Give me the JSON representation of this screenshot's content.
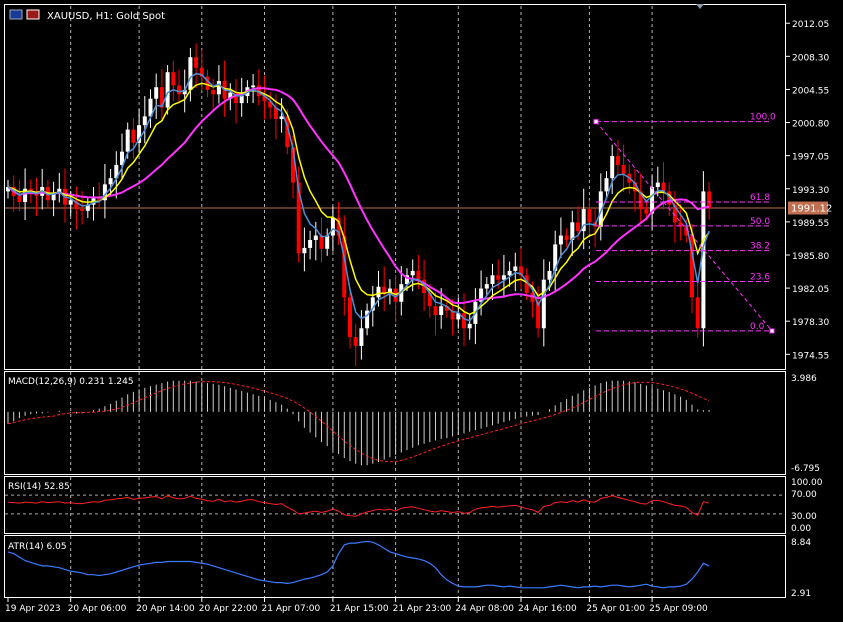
{
  "header": {
    "title": "XAUUSD, H1:  Gold Spot"
  },
  "colors": {
    "up": "#ffffff",
    "down": "#ff0000",
    "ma_fast": "#4f8fd6",
    "ma_mid": "#ffff00",
    "ma_slow": "#ff33ff",
    "fib": "#ff33ff",
    "price_line": "#c07050",
    "macd_signal": "#ff2020",
    "rsi": "#ff2020",
    "atr": "#3a7bff",
    "grid": "#ffffff",
    "axis": "#ffffff"
  },
  "price_axis": {
    "ticks": [
      "2012.05",
      "2008.30",
      "2004.55",
      "2000.80",
      "1997.05",
      "1993.30",
      "1989.55",
      "1985.80",
      "1982.05",
      "1978.30",
      "1974.55"
    ],
    "current": "1991.12"
  },
  "time_axis": {
    "labels": [
      "19 Apr 2023",
      "20 Apr 06:00",
      "20 Apr 14:00",
      "20 Apr 22:00",
      "21 Apr 07:00",
      "21 Apr 15:00",
      "21 Apr 23:00",
      "24 Apr 08:00",
      "24 Apr 16:00",
      "25 Apr 01:00",
      "25 Apr 09:00"
    ]
  },
  "fib": {
    "labels": [
      "100.0",
      "61.8",
      "50.0",
      "38.2",
      "23.6",
      "0.0"
    ]
  },
  "indicators": {
    "macd": {
      "label": "MACD(12,26,9) 0.231 1.245",
      "max": "3.986",
      "min": "-6.795"
    },
    "rsi": {
      "label": "RSI(14) 52.85",
      "ticks": [
        "100.00",
        "70.00",
        "30.00",
        "0.00"
      ]
    },
    "atr": {
      "label": "ATR(14) 6.05",
      "max": "8.84",
      "min": "2.91"
    }
  },
  "chart_data": {
    "type": "candlestick",
    "symbol": "XAUUSD",
    "timeframe": "H1",
    "ylim": [
      1973,
      2014
    ],
    "current_price": 1991.12,
    "fib_levels": [
      {
        "label": "100.0",
        "price": 2000.9
      },
      {
        "label": "61.8",
        "price": 1991.8
      },
      {
        "label": "50.0",
        "price": 1989.1
      },
      {
        "label": "38.2",
        "price": 1986.3
      },
      {
        "label": "23.6",
        "price": 1982.8
      },
      {
        "label": "0.0",
        "price": 1977.2
      }
    ],
    "close": [
      1993.5,
      1992.5,
      1991.8,
      1993.3,
      1993.0,
      1992.5,
      1993.5,
      1992.0,
      1992.8,
      1993.3,
      1991.5,
      1992.0,
      1991.0,
      1990.8,
      1991.5,
      1992.2,
      1992.0,
      1993.8,
      1994.5,
      1996.0,
      1997.5,
      2000.0,
      1998.5,
      2000.5,
      2001.5,
      2003.5,
      2004.8,
      2002.5,
      2006.5,
      2005.0,
      2004.0,
      2004.5,
      2008.2,
      2007.0,
      2006.0,
      2004.5,
      2004.0,
      2005.5,
      2003.5,
      2004.2,
      2003.0,
      2003.8,
      2004.8,
      2005.0,
      2003.8,
      2003.2,
      2002.5,
      2001.2,
      2001.5,
      1998.0,
      1994.0,
      1986.0,
      1986.6,
      1987.5,
      1988.0,
      1986.5,
      1988.0,
      1990.0,
      1988.0,
      1981.0,
      1976.5,
      1975.5,
      1977.5,
      1979.5,
      1981.0,
      1982.2,
      1981.5,
      1982.0,
      1980.5,
      1982.5,
      1983.5,
      1984.0,
      1983.0,
      1981.5,
      1980.0,
      1979.0,
      1980.0,
      1979.5,
      1978.5,
      1979.2,
      1977.5,
      1978.0,
      1980.5,
      1982.0,
      1982.5,
      1983.5,
      1983.0,
      1983.5,
      1984.0,
      1984.5,
      1983.5,
      1981.5,
      1980.5,
      1977.5,
      1983.0,
      1984.0,
      1987.0,
      1988.0,
      1987.5,
      1989.5,
      1988.5,
      1991.0,
      1989.5,
      1989.0,
      1993.0,
      1994.5,
      1997.0,
      1996.0,
      1995.0,
      1994.0,
      1993.0,
      1991.0,
      1990.5,
      1993.5,
      1994.0,
      1993.0,
      1991.5,
      1989.5,
      1989.0,
      1988.0,
      1981.0,
      1977.5,
      1993.0,
      1991.12
    ],
    "macd_histogram": [
      -1.5,
      -1.2,
      -0.8,
      -0.5,
      -0.3,
      -0.2,
      -0.2,
      -0.1,
      0.0,
      0.1,
      0.0,
      -0.1,
      -0.2,
      -0.2,
      0.0,
      0.2,
      0.4,
      0.7,
      1.0,
      1.4,
      1.8,
      2.2,
      2.5,
      2.8,
      3.0,
      3.2,
      3.4,
      3.6,
      3.8,
      3.9,
      3.9,
      3.9,
      3.9,
      3.8,
      3.7,
      3.6,
      3.5,
      3.4,
      3.2,
      3.0,
      2.8,
      2.6,
      2.4,
      2.2,
      2.0,
      1.8,
      1.5,
      1.2,
      0.9,
      0.4,
      -0.3,
      -1.2,
      -2.0,
      -2.6,
      -3.2,
      -3.8,
      -4.3,
      -4.8,
      -5.3,
      -5.8,
      -6.2,
      -6.5,
      -6.7,
      -6.7,
      -6.5,
      -6.3,
      -6.0,
      -5.7,
      -5.4,
      -5.1,
      -4.8,
      -4.5,
      -4.2,
      -4.0,
      -3.8,
      -3.6,
      -3.4,
      -3.3,
      -3.1,
      -2.9,
      -2.7,
      -2.5,
      -2.3,
      -2.1,
      -1.9,
      -1.7,
      -1.5,
      -1.3,
      -1.1,
      -0.9,
      -0.7,
      -0.6,
      -0.5,
      -0.4,
      0.0,
      0.3,
      0.8,
      1.2,
      1.6,
      2.0,
      2.3,
      2.7,
      3.0,
      3.3,
      3.6,
      3.8,
      3.9,
      3.9,
      3.9,
      3.8,
      3.7,
      3.5,
      3.3,
      3.1,
      2.9,
      2.7,
      2.5,
      2.2,
      1.9,
      1.5,
      0.9,
      0.3,
      0.2,
      0.23
    ],
    "rsi": [
      55,
      54,
      53,
      55,
      54,
      53,
      56,
      54,
      55,
      56,
      53,
      54,
      52,
      52,
      54,
      56,
      55,
      59,
      60,
      62,
      63,
      65,
      61,
      63,
      64,
      66,
      67,
      62,
      69,
      64,
      62,
      63,
      68,
      63,
      61,
      58,
      57,
      61,
      56,
      58,
      55,
      57,
      60,
      60,
      56,
      54,
      52,
      50,
      52,
      44,
      38,
      30,
      32,
      34,
      36,
      33,
      36,
      40,
      36,
      28,
      26,
      25,
      30,
      34,
      37,
      40,
      38,
      40,
      36,
      42,
      44,
      45,
      42,
      39,
      36,
      34,
      37,
      35,
      33,
      35,
      31,
      33,
      40,
      43,
      44,
      46,
      44,
      46,
      47,
      48,
      45,
      41,
      39,
      33,
      46,
      48,
      54,
      56,
      54,
      58,
      55,
      60,
      56,
      55,
      63,
      65,
      69,
      65,
      62,
      59,
      56,
      52,
      51,
      58,
      59,
      56,
      52,
      48,
      47,
      44,
      33,
      27,
      56,
      52.85
    ],
    "atr": [
      7.6,
      7.4,
      7.0,
      6.6,
      6.4,
      6.2,
      6.0,
      6.0,
      5.9,
      5.8,
      5.6,
      5.4,
      5.3,
      5.2,
      5.0,
      5.0,
      4.9,
      5.0,
      5.1,
      5.3,
      5.5,
      5.7,
      5.9,
      6.1,
      6.2,
      6.3,
      6.4,
      6.4,
      6.5,
      6.5,
      6.5,
      6.5,
      6.5,
      6.4,
      6.3,
      6.2,
      6.0,
      5.8,
      5.6,
      5.4,
      5.2,
      5.0,
      4.8,
      4.6,
      4.4,
      4.3,
      4.2,
      4.1,
      4.1,
      4.0,
      4.1,
      4.3,
      4.5,
      4.6,
      4.8,
      5.0,
      5.3,
      6.0,
      7.4,
      8.4,
      8.6,
      8.6,
      8.7,
      8.8,
      8.7,
      8.4,
      8.0,
      7.6,
      7.4,
      7.2,
      7.0,
      6.9,
      6.8,
      6.6,
      6.3,
      5.8,
      5.0,
      4.4,
      4.0,
      3.7,
      3.6,
      3.6,
      3.6,
      3.7,
      3.8,
      3.8,
      3.7,
      3.6,
      3.7,
      3.6,
      3.5,
      3.5,
      3.5,
      3.5,
      3.5,
      3.6,
      3.7,
      3.8,
      3.7,
      3.6,
      3.5,
      3.6,
      3.6,
      3.7,
      3.6,
      3.7,
      3.8,
      3.8,
      3.7,
      3.6,
      3.7,
      3.8,
      3.9,
      3.7,
      3.6,
      3.5,
      3.6,
      3.6,
      3.7,
      3.9,
      4.5,
      5.3,
      6.3,
      6.0
    ]
  }
}
